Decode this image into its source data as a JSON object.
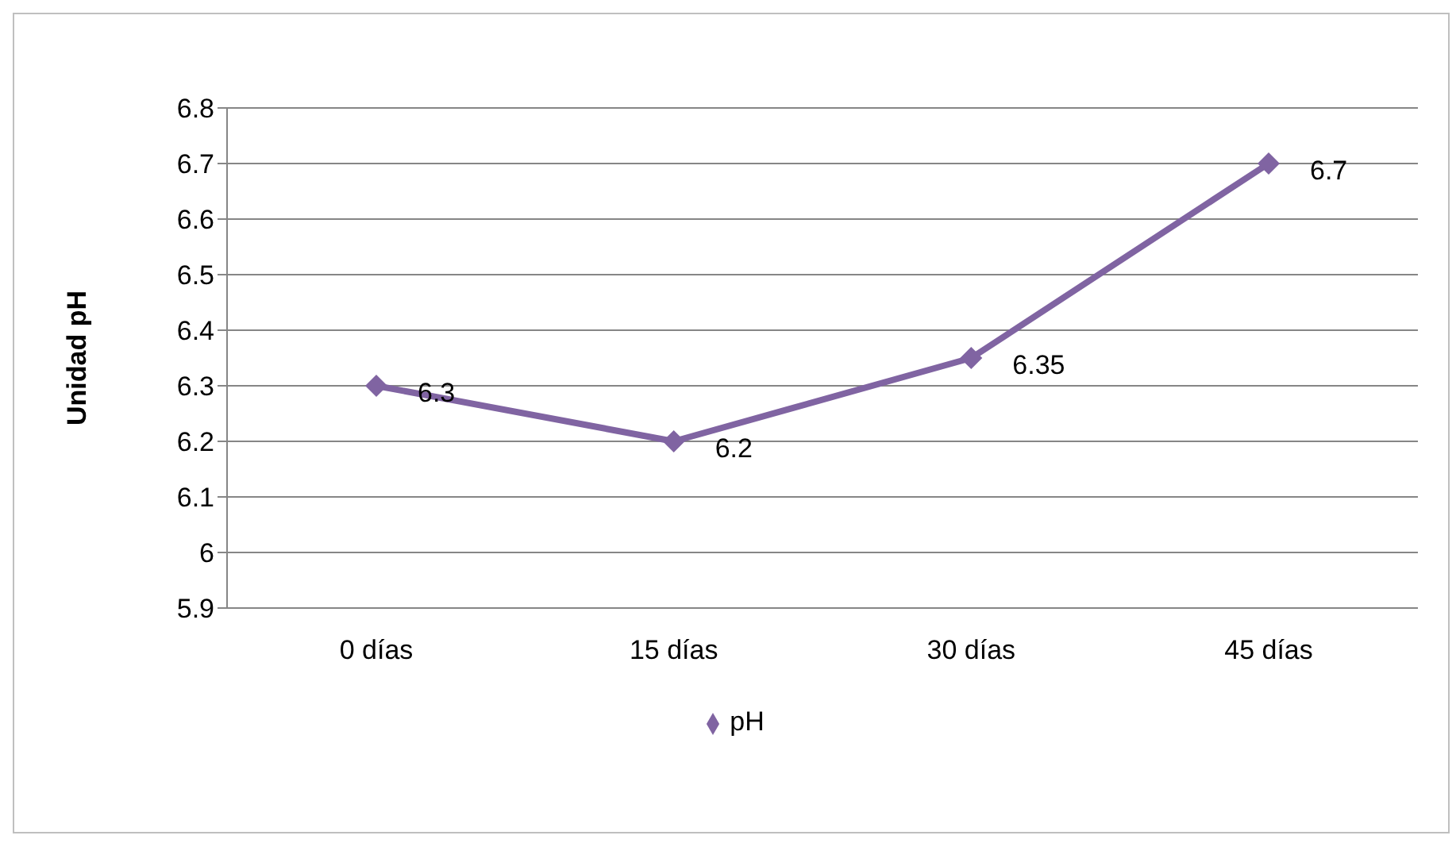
{
  "chart_data": {
    "type": "line",
    "ylabel": "Unidad pH",
    "categories": [
      "0 días",
      "15 días",
      "30 días",
      "45 días"
    ],
    "series": [
      {
        "name": "pH",
        "color": "#8064a2",
        "values": [
          6.3,
          6.2,
          6.35,
          6.7
        ]
      }
    ],
    "ylim": [
      5.9,
      6.8
    ],
    "yticks": [
      5.9,
      6,
      6.1,
      6.2,
      6.3,
      6.4,
      6.5,
      6.6,
      6.7,
      6.8
    ],
    "grid": "y",
    "legend": "bottom",
    "marker": "diamond",
    "line_style": "solid",
    "data_labels": true
  }
}
